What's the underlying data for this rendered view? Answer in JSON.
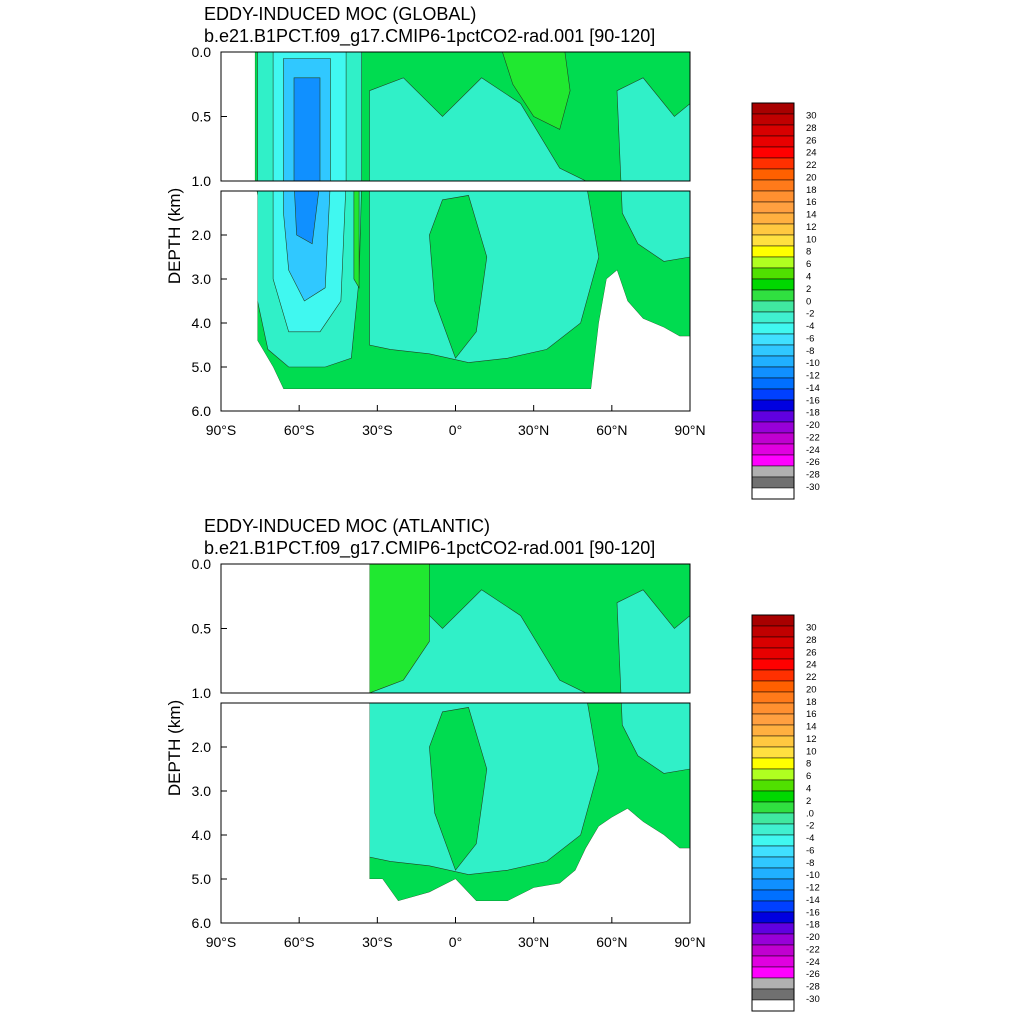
{
  "chart_data": [
    {
      "type": "heatmap",
      "title": "EDDY-INDUCED MOC (GLOBAL)",
      "subtitle": "b.e21.B1PCT.f09_g17.CMIP6-1pctCO2-rad.001 [90-120]",
      "ylabel": "DEPTH (km)",
      "xlabel": "",
      "xlim": [
        -90,
        90
      ],
      "ylim": [
        6.0,
        0.0
      ],
      "y_break": 1.0,
      "xticks": [
        "90°S",
        "60°S",
        "30°S",
        "0°",
        "30°N",
        "60°N",
        "90°N"
      ],
      "yticks_upper": [
        "0.0",
        "0.5",
        "1.0"
      ],
      "yticks_lower": [
        "2.0",
        "3.0",
        "4.0",
        "5.0",
        "6.0"
      ],
      "colorbar_labels": [
        "30",
        "28",
        "26",
        "24",
        "22",
        "20",
        "18",
        "16",
        "14",
        "12",
        "10",
        "8",
        "6",
        "4",
        "2",
        "0",
        "-2",
        "-4",
        "-6",
        "-8",
        "-10",
        "-12",
        "-14",
        "-16",
        "-18",
        "-20",
        "-22",
        "-24",
        "-26",
        "-28",
        "-30"
      ],
      "colors": [
        "#a80000",
        "#c00000",
        "#d80000",
        "#e80000",
        "#ff0000",
        "#ff3000",
        "#ff6000",
        "#ff7a1a",
        "#ff9030",
        "#ffa040",
        "#ffb040",
        "#ffc840",
        "#ffe040",
        "#ffff00",
        "#b0ff20",
        "#50e000",
        "#00d800",
        "#30e040",
        "#40e8a0",
        "#40f0d0",
        "#40f8f0",
        "#40e0ff",
        "#30c8ff",
        "#20b0ff",
        "#1090ff",
        "#0070ff",
        "#0040ff",
        "#0000e0",
        "#6000e0",
        "#9800d8",
        "#c000d0",
        "#e000e0",
        "#ff00ff",
        "#b0b0b0",
        "#707070",
        "#ffffff"
      ],
      "regions": [
        {
          "name": "southern-ocean-negative-cell",
          "lat_range": [
            -72,
            -36
          ],
          "depth_range": [
            0.0,
            5.0
          ],
          "min_value": -14
        },
        {
          "name": "main-positive-field",
          "lat_range": [
            -36,
            90
          ],
          "depth_range": [
            0.0,
            5.5
          ],
          "value_range": [
            0,
            4
          ]
        },
        {
          "name": "midlat-negative-band",
          "lat_range": [
            -30,
            55
          ],
          "depth_range": [
            0.2,
            5.0
          ],
          "value_range": [
            -4,
            0
          ]
        }
      ]
    },
    {
      "type": "heatmap",
      "title": "EDDY-INDUCED MOC (ATLANTIC)",
      "subtitle": "b.e21.B1PCT.f09_g17.CMIP6-1pctCO2-rad.001 [90-120]",
      "ylabel": "DEPTH (km)",
      "xlabel": "",
      "xlim": [
        -90,
        90
      ],
      "ylim": [
        6.0,
        0.0
      ],
      "y_break": 1.0,
      "xticks": [
        "90°S",
        "60°S",
        "30°S",
        "0°",
        "30°N",
        "60°N",
        "90°N"
      ],
      "yticks_upper": [
        "0.0",
        "0.5",
        "1.0"
      ],
      "yticks_lower": [
        "2.0",
        "3.0",
        "4.0",
        "5.0",
        "6.0"
      ],
      "colorbar_labels": [
        "30",
        "28",
        "26",
        "24",
        "22",
        "20",
        "18",
        "16",
        "14",
        "12",
        "10",
        "8",
        "6",
        "4",
        "2",
        ".0",
        "-2",
        "-4",
        "-6",
        "-8",
        "-10",
        "-12",
        "-14",
        "-16",
        "-18",
        "-20",
        "-22",
        "-24",
        "-26",
        "-28",
        "-30"
      ],
      "colors": [
        "#a80000",
        "#c00000",
        "#d80000",
        "#e80000",
        "#ff0000",
        "#ff3000",
        "#ff6000",
        "#ff7a1a",
        "#ff9030",
        "#ffa040",
        "#ffb040",
        "#ffc840",
        "#ffe040",
        "#ffff00",
        "#b0ff20",
        "#50e000",
        "#00d800",
        "#30e040",
        "#40e8a0",
        "#40f0d0",
        "#40f8f0",
        "#40e0ff",
        "#30c8ff",
        "#20b0ff",
        "#1090ff",
        "#0070ff",
        "#0040ff",
        "#0000e0",
        "#6000e0",
        "#9800d8",
        "#c000d0",
        "#e000e0",
        "#ff00ff",
        "#b0b0b0",
        "#707070",
        "#ffffff"
      ],
      "regions": [
        {
          "name": "atlantic-positive-field",
          "lat_range": [
            -34,
            90
          ],
          "depth_range": [
            0.0,
            5.5
          ],
          "value_range": [
            0,
            4
          ]
        },
        {
          "name": "atlantic-negative-band",
          "lat_range": [
            -34,
            55
          ],
          "depth_range": [
            0.2,
            5.0
          ],
          "value_range": [
            -4,
            0
          ]
        }
      ]
    }
  ]
}
